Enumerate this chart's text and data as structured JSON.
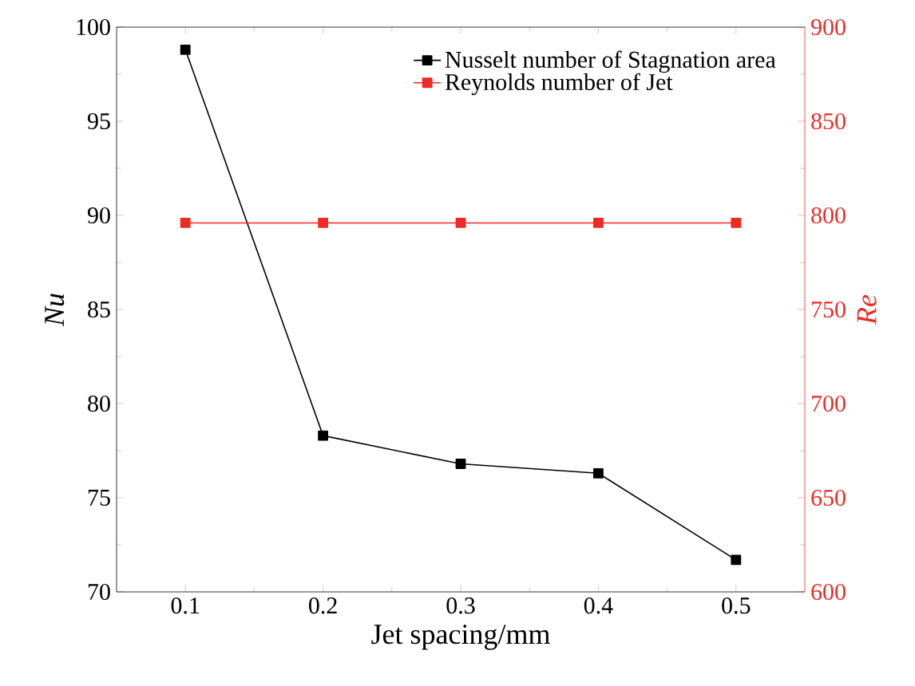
{
  "chart_data": {
    "type": "line",
    "xlabel": "Jet spacing/mm",
    "ylabel": "Nu",
    "y2label": "Re",
    "x": [
      0.1,
      0.2,
      0.3,
      0.4,
      0.5
    ],
    "series": [
      {
        "name": "Nusselt number of Stagnation area",
        "color": "#000000",
        "values": [
          98.8,
          78.3,
          76.8,
          76.3,
          71.7
        ]
      },
      {
        "name": "Reynolds number of Jet",
        "color": "#ee2a24",
        "axis": "y2",
        "values": [
          796,
          796,
          796,
          796,
          796
        ]
      }
    ],
    "xlim": [
      0.05,
      0.55
    ],
    "xticks": [
      0.1,
      0.2,
      0.3,
      0.4,
      0.5
    ],
    "ylim": [
      70,
      100
    ],
    "yticks": [
      70,
      75,
      80,
      85,
      90,
      95,
      100
    ],
    "y2lim": [
      600,
      900
    ],
    "y2ticks": [
      600,
      650,
      700,
      750,
      800,
      850,
      900
    ],
    "marker": "square",
    "legend": "top right",
    "grid": false
  }
}
